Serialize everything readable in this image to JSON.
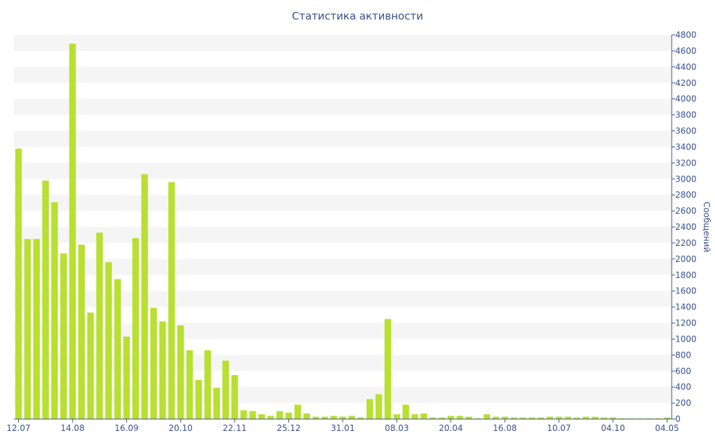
{
  "colors": {
    "bar": "#b8e030",
    "band": "#f5f5f5",
    "axis": "#3a4f8f",
    "text": "#3a4f8f"
  },
  "chart_data": {
    "type": "bar",
    "title": "Статистика активности",
    "xlabel": "",
    "ylabel": "Сообщений",
    "ylim": [
      0,
      4800
    ],
    "y_axis_position": "right",
    "grid": "horizontal bands",
    "legend": "none",
    "yticks": [
      0,
      200,
      400,
      600,
      800,
      1000,
      1200,
      1400,
      1600,
      1800,
      2000,
      2200,
      2400,
      2600,
      2800,
      3000,
      3200,
      3400,
      3600,
      3800,
      4000,
      4200,
      4400,
      4600,
      4800
    ],
    "xtick_labels": [
      {
        "index": 0,
        "label": "12.07"
      },
      {
        "index": 6,
        "label": "14.08"
      },
      {
        "index": 12,
        "label": "16.09"
      },
      {
        "index": 18,
        "label": "20.10"
      },
      {
        "index": 24,
        "label": "22.11"
      },
      {
        "index": 30,
        "label": "25.12"
      },
      {
        "index": 36,
        "label": "31.01"
      },
      {
        "index": 42,
        "label": "08.03"
      },
      {
        "index": 48,
        "label": "20.04"
      },
      {
        "index": 54,
        "label": "16.08"
      },
      {
        "index": 60,
        "label": "10.07"
      },
      {
        "index": 66,
        "label": "04.10"
      },
      {
        "index": 72,
        "label": "04.05"
      }
    ],
    "values": [
      3380,
      2250,
      2250,
      2980,
      2710,
      2070,
      4690,
      2180,
      1330,
      2330,
      1960,
      1750,
      1030,
      2260,
      3060,
      1390,
      1220,
      2960,
      1170,
      860,
      490,
      860,
      390,
      730,
      550,
      110,
      100,
      60,
      40,
      100,
      80,
      180,
      70,
      30,
      30,
      40,
      30,
      40,
      20,
      250,
      310,
      1250,
      60,
      180,
      60,
      70,
      20,
      20,
      40,
      40,
      30,
      10,
      60,
      30,
      30,
      20,
      20,
      20,
      20,
      30,
      30,
      30,
      20,
      30,
      30,
      20,
      20,
      10,
      10,
      10,
      10,
      10,
      20
    ]
  }
}
